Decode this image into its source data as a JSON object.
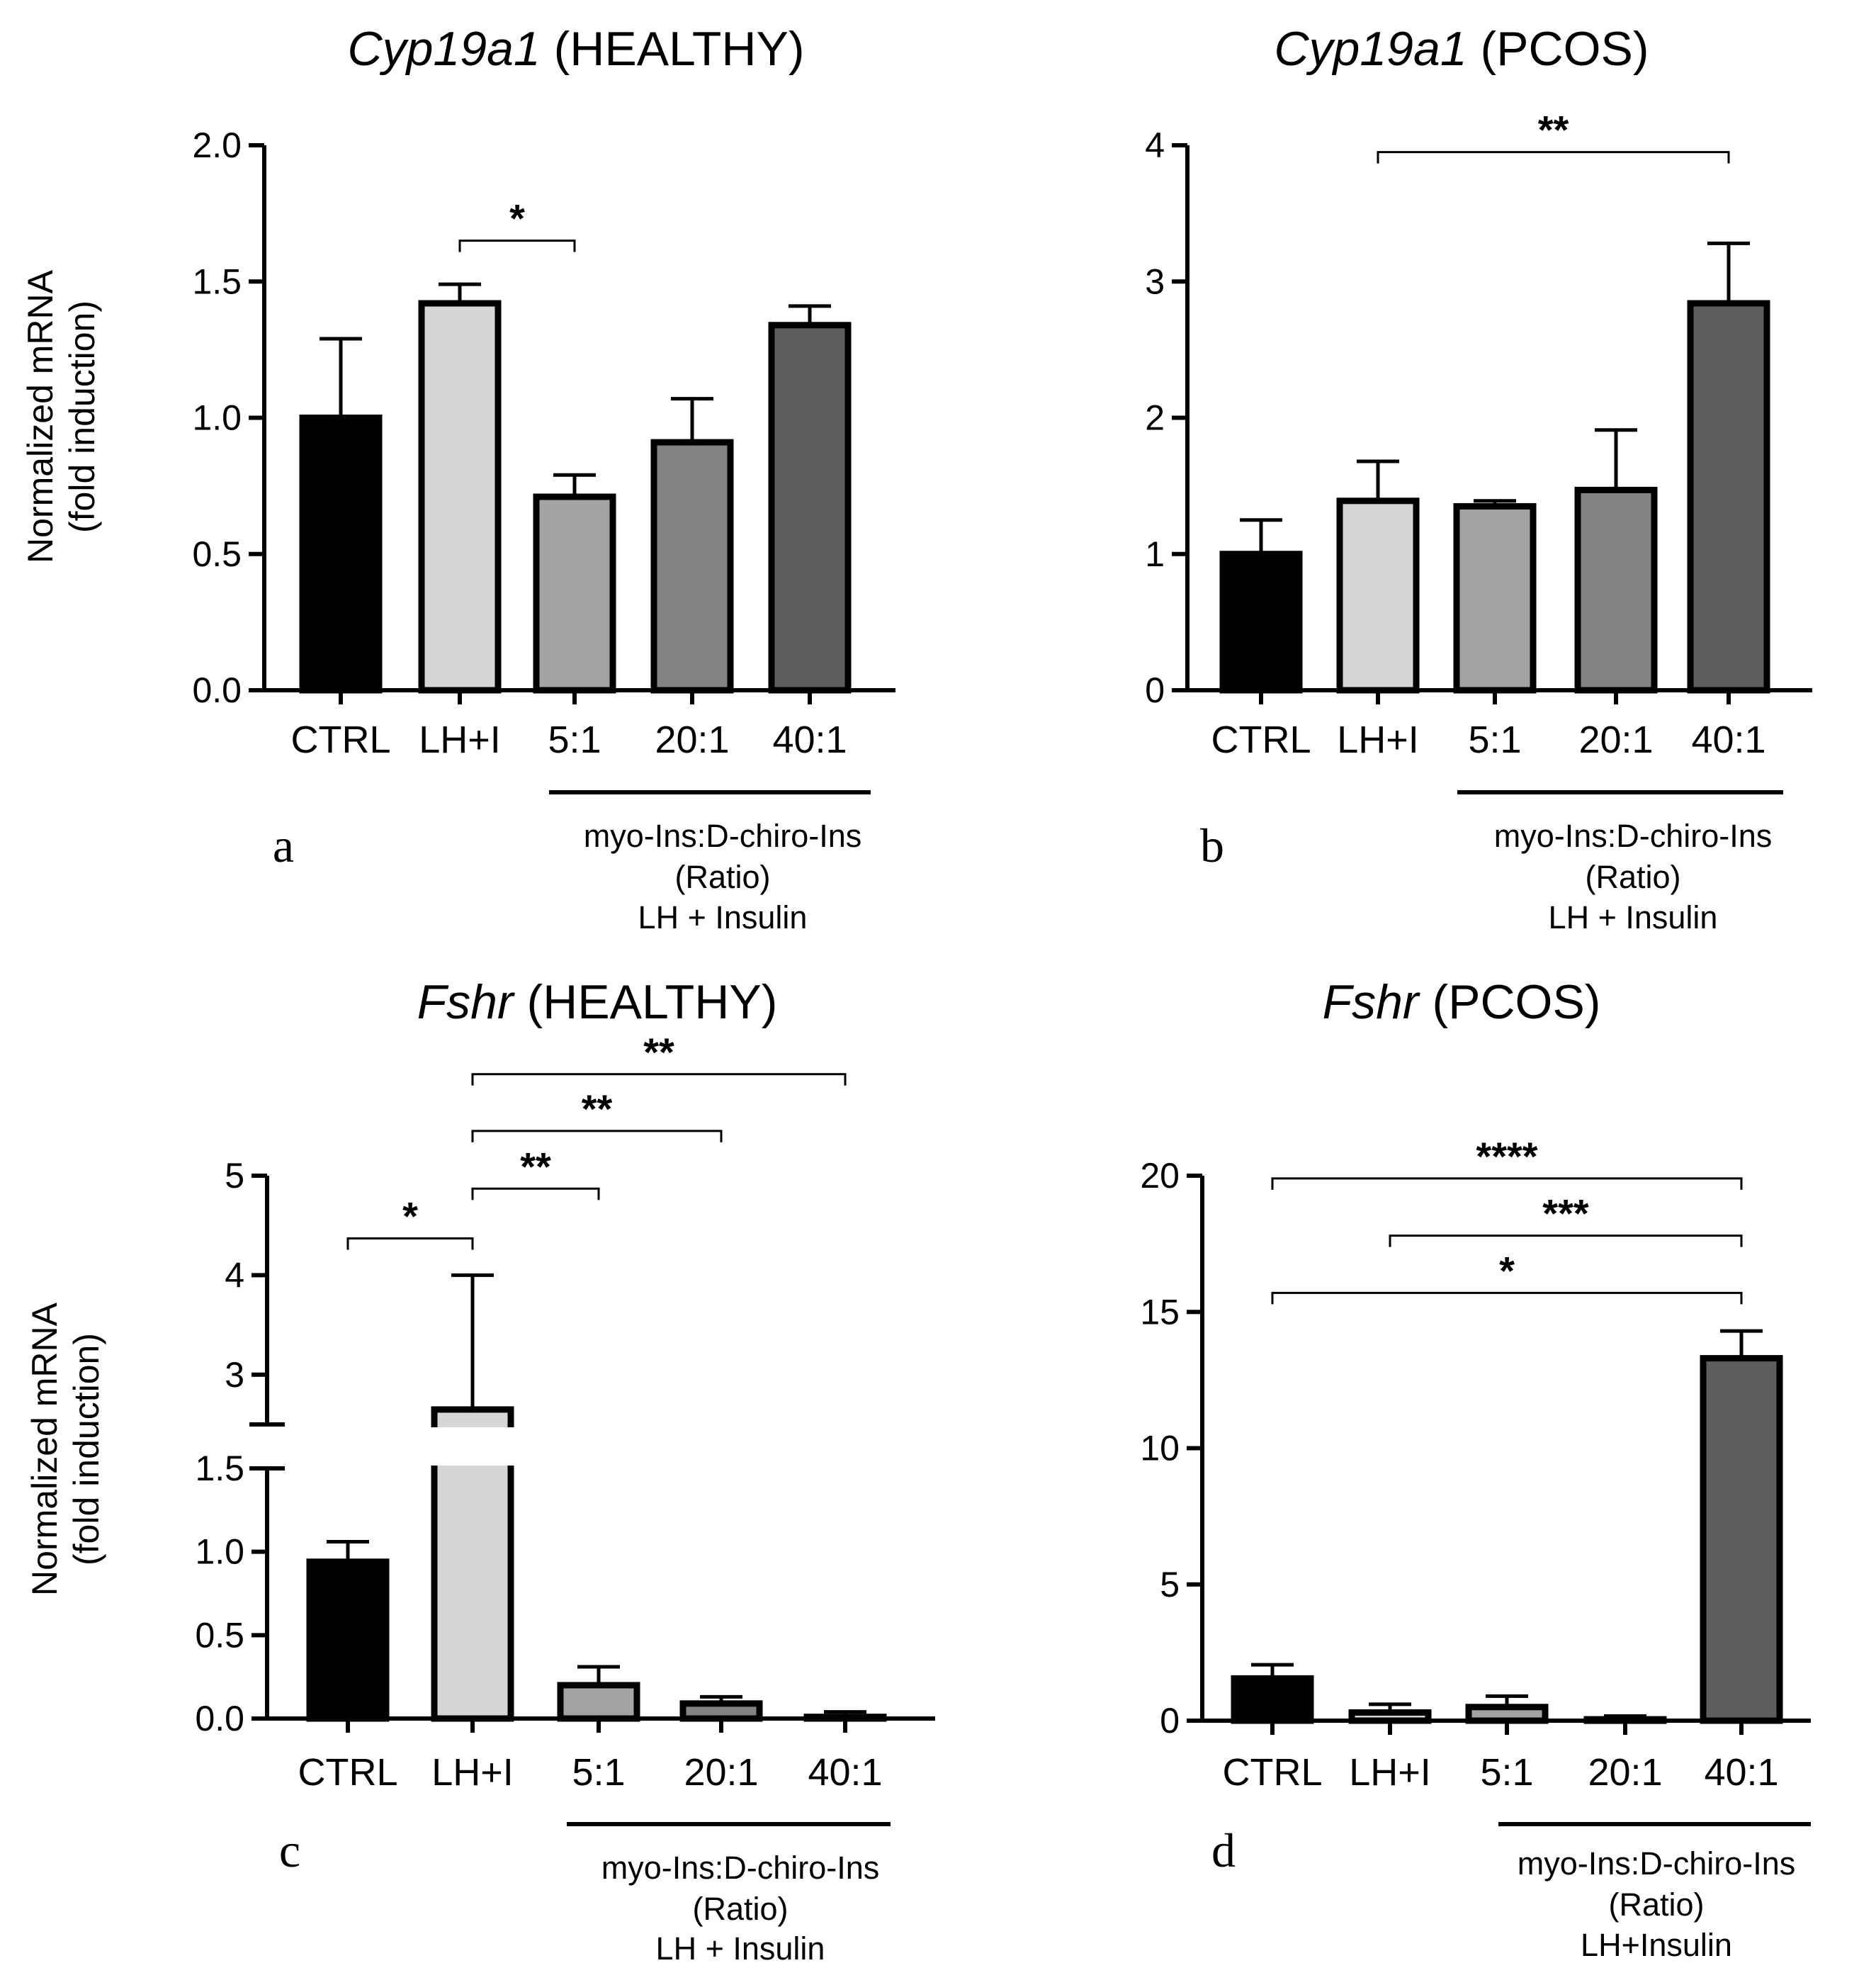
{
  "chart_data": [
    {
      "id": "a",
      "type": "bar",
      "panel_label": "a",
      "title_gene": "Cyp19a1",
      "title_rest": " (HEALTHY)",
      "ylabel_line1": "Normalized mRNA",
      "ylabel_line2": "(fold induction)",
      "ylim": [
        0,
        2.0
      ],
      "yticks": [
        0.0,
        0.5,
        1.0,
        1.5,
        2.0
      ],
      "ytick_labels": [
        "0.0",
        "0.5",
        "1.0",
        "1.5",
        "2.0"
      ],
      "categories": [
        "CTRL",
        "LH+I",
        "5:1",
        "20:1",
        "40:1"
      ],
      "values": [
        1.0,
        1.42,
        0.71,
        0.91,
        1.34
      ],
      "errors": [
        0.29,
        0.07,
        0.08,
        0.16,
        0.07
      ],
      "colors": [
        "#000000",
        "#d6d6d6",
        "#a3a3a5",
        "#838383",
        "#5e5e5e"
      ],
      "group_label": [
        "myo-Ins:D-chiro-Ins",
        "(Ratio)",
        "LH + Insulin"
      ],
      "significance": [
        {
          "from": 1,
          "to": 2,
          "y": 1.65,
          "label": "*"
        }
      ]
    },
    {
      "id": "b",
      "type": "bar",
      "panel_label": "b",
      "title_gene": "Cyp19a1",
      "title_rest": " (PCOS)",
      "ylabel_line1": "",
      "ylabel_line2": "",
      "ylim": [
        0,
        4
      ],
      "yticks": [
        0,
        1,
        2,
        3,
        4
      ],
      "ytick_labels": [
        "0",
        "1",
        "2",
        "3",
        "4"
      ],
      "categories": [
        "CTRL",
        "LH+I",
        "5:1",
        "20:1",
        "40:1"
      ],
      "values": [
        1.0,
        1.39,
        1.35,
        1.47,
        2.84
      ],
      "errors": [
        0.25,
        0.29,
        0.04,
        0.44,
        0.44
      ],
      "colors": [
        "#000000",
        "#d6d6d6",
        "#a3a3a5",
        "#838383",
        "#5e5e5e"
      ],
      "group_label": [
        "myo-Ins:D-chiro-Ins",
        "(Ratio)",
        "LH + Insulin"
      ],
      "significance": [
        {
          "from": 1,
          "to": 4,
          "y": 3.95,
          "label": "**"
        }
      ]
    },
    {
      "id": "c",
      "type": "bar",
      "panel_label": "c",
      "title_gene": "Fshr",
      "title_rest": " (HEALTHY)",
      "ylabel_line1": "Normalized mRNA",
      "ylabel_line2": "(fold induction)",
      "axis_break": {
        "lower": [
          0,
          1.5
        ],
        "upper": [
          2.5,
          5
        ]
      },
      "yticks": [
        0.0,
        0.5,
        1.0,
        1.5,
        3,
        4,
        5
      ],
      "ytick_labels": [
        "0.0",
        "0.5",
        "1.0",
        "1.5",
        "3",
        "4",
        "5"
      ],
      "categories": [
        "CTRL",
        "LH+I",
        "5:1",
        "20:1",
        "40:1"
      ],
      "values": [
        0.94,
        2.65,
        0.2,
        0.09,
        0.01
      ],
      "errors": [
        0.12,
        1.35,
        0.11,
        0.04,
        0.03
      ],
      "colors": [
        "#000000",
        "#d6d6d6",
        "#a3a3a5",
        "#838383",
        "#5e5e5e"
      ],
      "group_label": [
        "myo-Ins:D-chiro-Ins",
        "(Ratio)",
        "LH + Insulin"
      ],
      "significance": [
        {
          "from": 0,
          "to": 1,
          "y": 4.37,
          "label": "*"
        },
        {
          "from": 1,
          "to": 2,
          "y": 4.87,
          "label": "**"
        },
        {
          "from": 1,
          "to": 3,
          "y": 5.45,
          "label": "**"
        },
        {
          "from": 1,
          "to": 4,
          "y": 6.02,
          "label": "**"
        }
      ]
    },
    {
      "id": "d",
      "type": "bar",
      "panel_label": "d",
      "title_gene": "Fshr",
      "title_rest": " (PCOS)",
      "ylabel_line1": "",
      "ylabel_line2": "",
      "ylim": [
        0,
        20
      ],
      "yticks": [
        0,
        5,
        10,
        15,
        20
      ],
      "ytick_labels": [
        "0",
        "5",
        "10",
        "15",
        "20"
      ],
      "categories": [
        "CTRL",
        "LH+I",
        "5:1",
        "20:1",
        "40:1"
      ],
      "values": [
        1.55,
        0.3,
        0.5,
        0.05,
        13.3
      ],
      "errors": [
        0.5,
        0.3,
        0.4,
        0.12,
        1.0
      ],
      "colors": [
        "#000000",
        "#d6d6d6",
        "#a3a3a5",
        "#838383",
        "#5e5e5e"
      ],
      "group_label": [
        "myo-Ins:D-chiro-Ins",
        "(Ratio)",
        "LH+Insulin"
      ],
      "significance": [
        {
          "from": 0,
          "to": 4,
          "y": 15.7,
          "label": "*"
        },
        {
          "from": 1,
          "to": 4,
          "y": 17.8,
          "label": "***"
        },
        {
          "from": 0,
          "to": 4,
          "y": 19.9,
          "label": "****"
        }
      ]
    }
  ]
}
